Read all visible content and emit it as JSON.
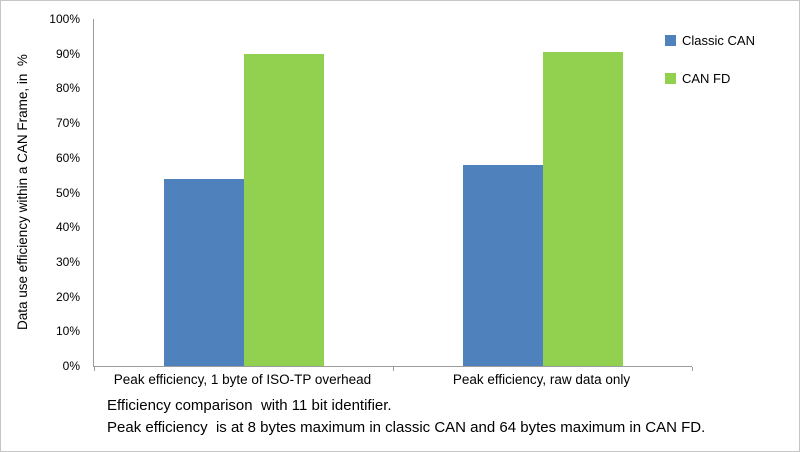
{
  "chart_data": {
    "type": "bar",
    "title": "",
    "ylabel": "Data use efficiency within a CAN Frame, in  %",
    "xlabel": "",
    "categories": [
      "Peak efficiency, 1 byte of ISO-TP overhead",
      "Peak efficiency, raw data only"
    ],
    "series": [
      {
        "name": "Classic CAN",
        "color": "#4f81bd",
        "values": [
          54,
          58
        ]
      },
      {
        "name": "CAN FD",
        "color": "#92d050",
        "values": [
          90,
          90.5
        ]
      }
    ],
    "ylim": [
      0,
      100
    ],
    "yticks": [
      "0%",
      "10%",
      "20%",
      "30%",
      "40%",
      "50%",
      "60%",
      "70%",
      "80%",
      "90%",
      "100%"
    ],
    "grid": false,
    "legend_position": "right-top"
  },
  "caption": {
    "line1": "Efficiency comparison  with 11 bit identifier.",
    "line2": "Peak efficiency  is at 8 bytes maximum in classic CAN and 64 bytes maximum in CAN FD."
  }
}
